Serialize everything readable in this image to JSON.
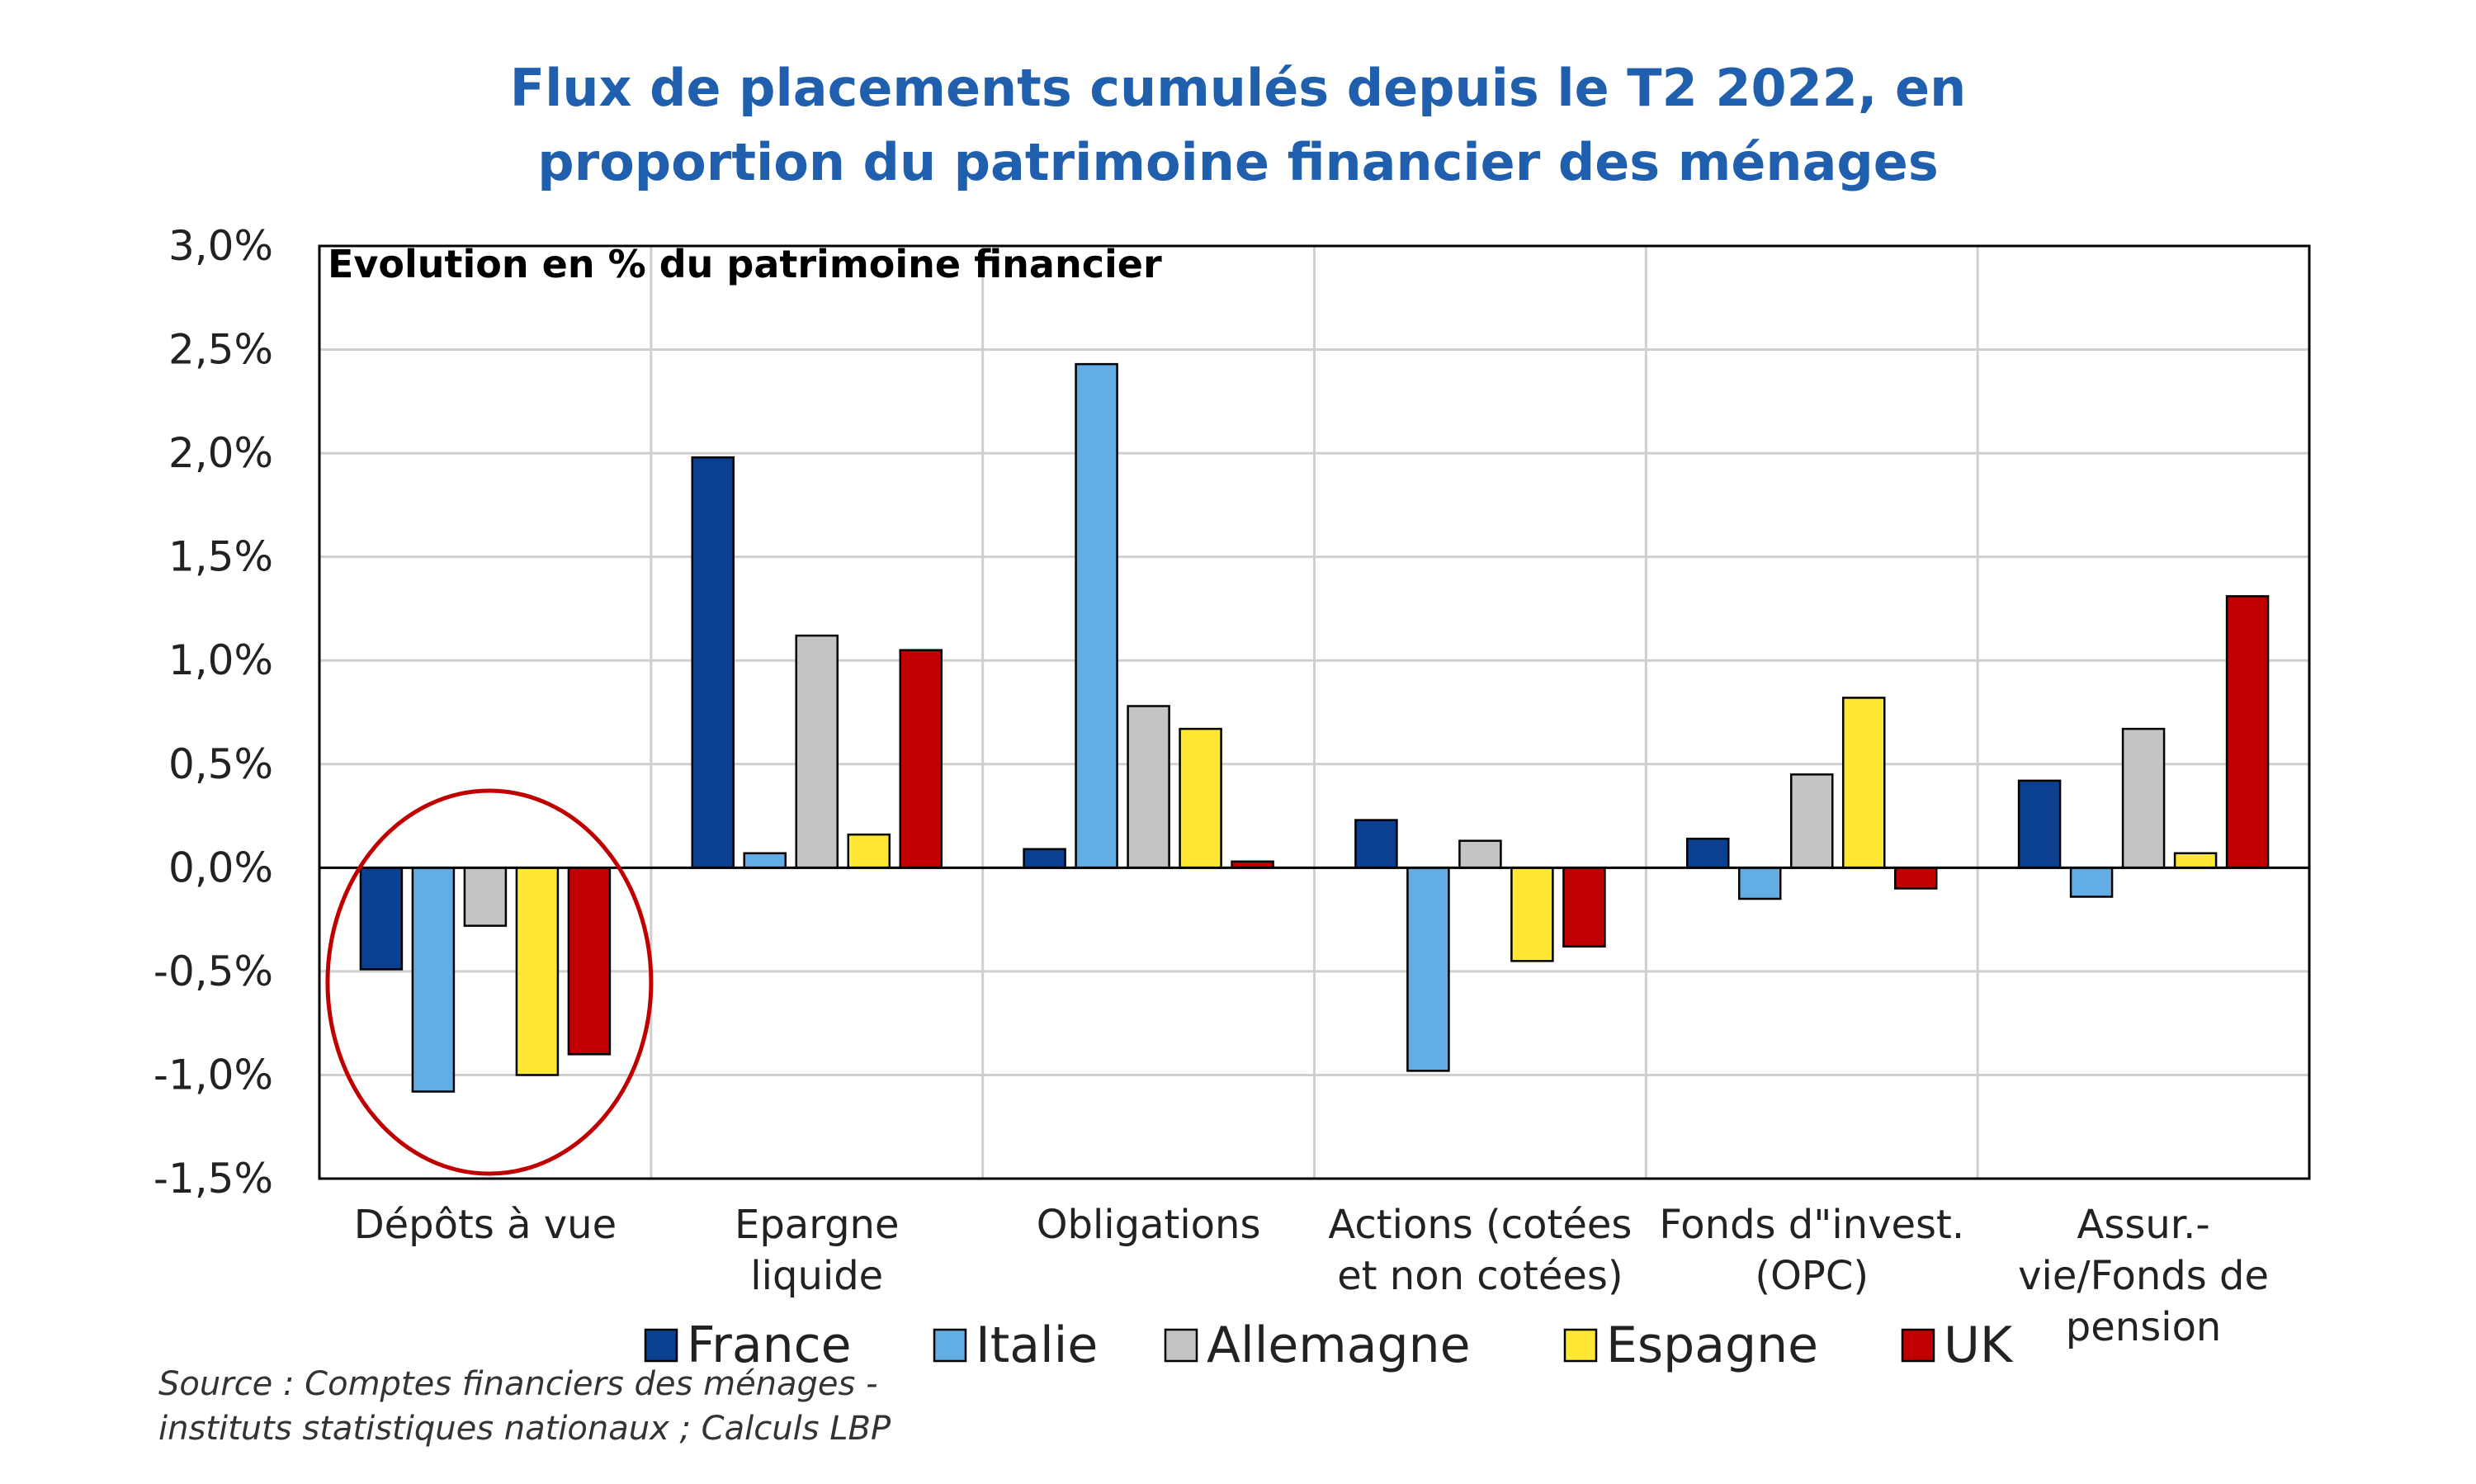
{
  "chart_data": {
    "type": "bar",
    "title": [
      "Flux de placements cumulés depuis le T2 2022, en",
      "proportion du patrimoine financier des ménages"
    ],
    "inner_label": "Evolution en % du patrimoine financier",
    "categories": [
      [
        "Dépôts à vue"
      ],
      [
        "Epargne",
        "liquide"
      ],
      [
        "Obligations"
      ],
      [
        "Actions (cotées",
        "et non cotées)"
      ],
      [
        "Fonds d\"invest.",
        "(OPC)"
      ],
      [
        "Assur.-",
        "vie/Fonds de",
        "pension"
      ]
    ],
    "series": [
      {
        "name": "France",
        "color": "#0B3F8F",
        "values": [
          -0.49,
          1.98,
          0.09,
          0.23,
          0.14,
          0.42
        ]
      },
      {
        "name": "Italie",
        "color": "#62ADE3",
        "values": [
          -1.08,
          0.07,
          2.43,
          -0.98,
          -0.15,
          -0.14
        ]
      },
      {
        "name": "Allemagne",
        "color": "#C4C4C4",
        "values": [
          -0.28,
          1.12,
          0.78,
          0.13,
          0.45,
          0.67
        ]
      },
      {
        "name": "Espagne",
        "color": "#FFE833",
        "values": [
          -1.0,
          0.16,
          0.67,
          -0.45,
          0.82,
          0.07
        ]
      },
      {
        "name": "UK",
        "color": "#C00000",
        "values": [
          -0.9,
          1.05,
          0.03,
          -0.38,
          -0.1,
          1.31
        ]
      }
    ],
    "yticks": [
      "3,0%",
      "2,5%",
      "2,0%",
      "1,5%",
      "1,0%",
      "0,5%",
      "0,0%",
      "-0,5%",
      "-1,0%",
      "-1,5%"
    ],
    "ylim": [
      -1.5,
      3.0
    ],
    "grid": true,
    "legend_position": "bottom",
    "highlight": {
      "category": "Dépôts à vue",
      "shape": "ellipse",
      "color": "#C00000"
    }
  },
  "source": [
    "Source : Comptes financiers des ménages -",
    "instituts statistiques nationaux ; Calculs LBP"
  ]
}
